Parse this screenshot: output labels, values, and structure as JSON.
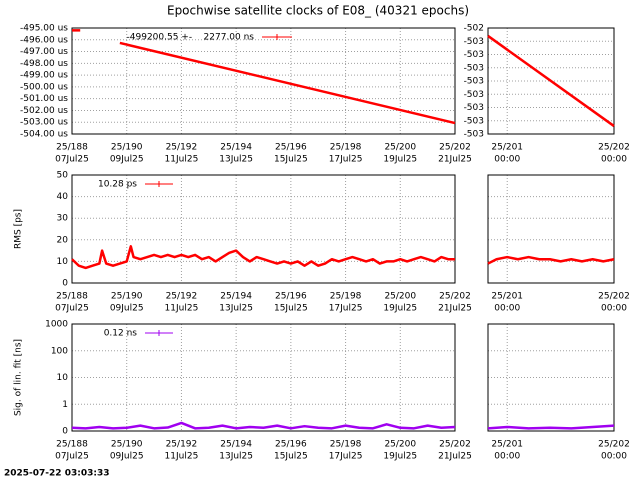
{
  "title": "Epochwise satellite clocks of E08_ (40321 epochs)",
  "timestamp": "2025-07-22 03:03:33",
  "chart_data": [
    {
      "type": "line",
      "grid": true,
      "xlim": [
        188,
        202
      ],
      "ylim": [
        -504,
        -495
      ],
      "xticks": [
        {
          "value": 188,
          "label": [
            "25/188",
            "07Jul25"
          ]
        },
        {
          "value": 190,
          "label": [
            "25/190",
            "09Jul25"
          ]
        },
        {
          "value": 192,
          "label": [
            "25/192",
            "11Jul25"
          ]
        },
        {
          "value": 194,
          "label": [
            "25/194",
            "13Jul25"
          ]
        },
        {
          "value": 196,
          "label": [
            "25/196",
            "15Jul25"
          ]
        },
        {
          "value": 198,
          "label": [
            "25/198",
            "17Jul25"
          ]
        },
        {
          "value": 200,
          "label": [
            "25/200",
            "19Jul25"
          ]
        },
        {
          "value": 202,
          "label": [
            "25/202",
            "21Jul25"
          ]
        }
      ],
      "yticks": [
        {
          "value": -495,
          "label": "-495.00 us"
        },
        {
          "value": -496,
          "label": "-496.00 us"
        },
        {
          "value": -497,
          "label": "-497.00 us"
        },
        {
          "value": -498,
          "label": "-498.00 us"
        },
        {
          "value": -499,
          "label": "-499.00 us"
        },
        {
          "value": -500,
          "label": "-500.00 us"
        },
        {
          "value": -501,
          "label": "-501.00 us"
        },
        {
          "value": -502,
          "label": "-502.00 us"
        },
        {
          "value": -503,
          "label": "-503.00 us"
        },
        {
          "value": -504,
          "label": "-504.00 us"
        }
      ],
      "series": [
        {
          "name": "-499200.55 +-    2277.00 ns",
          "color": "#ff0000",
          "x": [
            188.0,
            188.3,
            188.4,
            189.75,
            202.0
          ],
          "values": [
            -495.2,
            -495.2,
            null,
            -496.27,
            -503.07
          ]
        }
      ]
    },
    {
      "type": "line",
      "grid": true,
      "xlim": [
        200.82,
        202
      ],
      "ylim": [
        -503.2,
        -502.4
      ],
      "xticks": [
        {
          "value": 201,
          "label": [
            "25/201",
            "00:00"
          ]
        },
        {
          "value": 202,
          "label": [
            "25/202",
            "00:00"
          ]
        }
      ],
      "yticks": [
        {
          "value": -502.4,
          "label": "-502"
        },
        {
          "value": -502.5,
          "label": "-503"
        },
        {
          "value": -502.6,
          "label": "-503"
        },
        {
          "value": -502.7,
          "label": "-503"
        },
        {
          "value": -502.8,
          "label": "-503"
        },
        {
          "value": -502.9,
          "label": "-503"
        },
        {
          "value": -503.0,
          "label": "-503"
        },
        {
          "value": -503.1,
          "label": "-503"
        },
        {
          "value": -503.2,
          "label": "-503"
        }
      ],
      "series": [
        {
          "color": "#ff0000",
          "x": [
            200.82,
            202.0
          ],
          "values": [
            -502.46,
            -503.14
          ]
        }
      ]
    },
    {
      "type": "line",
      "grid": true,
      "ylabel": "RMS [ps]",
      "xlim": [
        188,
        202
      ],
      "ylim": [
        0,
        50
      ],
      "xticks": [
        {
          "value": 188,
          "label": [
            "25/188",
            "07Jul25"
          ]
        },
        {
          "value": 190,
          "label": [
            "25/190",
            "09Jul25"
          ]
        },
        {
          "value": 192,
          "label": [
            "25/192",
            "11Jul25"
          ]
        },
        {
          "value": 194,
          "label": [
            "25/194",
            "13Jul25"
          ]
        },
        {
          "value": 196,
          "label": [
            "25/196",
            "15Jul25"
          ]
        },
        {
          "value": 198,
          "label": [
            "25/198",
            "17Jul25"
          ]
        },
        {
          "value": 200,
          "label": [
            "25/200",
            "19Jul25"
          ]
        },
        {
          "value": 202,
          "label": [
            "25/202",
            "21Jul25"
          ]
        }
      ],
      "yticks": [
        0,
        10,
        20,
        30,
        40,
        50
      ],
      "series": [
        {
          "name": "10.28 ps",
          "color": "#ff0000",
          "x": [
            188.0,
            188.25,
            188.5,
            188.75,
            189.0,
            189.1,
            189.25,
            189.5,
            189.75,
            190.0,
            190.15,
            190.25,
            190.5,
            190.75,
            191.0,
            191.25,
            191.5,
            191.75,
            192.0,
            192.25,
            192.5,
            192.75,
            193.0,
            193.25,
            193.5,
            193.75,
            194.0,
            194.25,
            194.5,
            194.75,
            195.0,
            195.25,
            195.5,
            195.75,
            196.0,
            196.25,
            196.5,
            196.75,
            197.0,
            197.25,
            197.5,
            197.75,
            198.0,
            198.25,
            198.5,
            198.75,
            199.0,
            199.25,
            199.5,
            199.75,
            200.0,
            200.25,
            200.5,
            200.75,
            201.0,
            201.25,
            201.5,
            201.75,
            202.0
          ],
          "values": [
            11,
            8,
            7,
            8,
            9,
            15,
            9,
            8,
            9,
            10,
            17,
            12,
            11,
            12,
            13,
            12,
            13,
            12,
            13,
            12,
            13,
            11,
            12,
            10,
            12,
            14,
            15,
            12,
            10,
            12,
            11,
            10,
            9,
            10,
            9,
            10,
            8,
            10,
            8,
            9,
            11,
            10,
            11,
            12,
            11,
            10,
            11,
            9,
            10,
            10,
            11,
            10,
            11,
            12,
            11,
            10,
            12,
            11,
            11
          ]
        }
      ]
    },
    {
      "type": "line",
      "grid": true,
      "yticklabels": false,
      "xlim": [
        200.82,
        202
      ],
      "ylim": [
        0,
        50
      ],
      "xticks": [
        {
          "value": 201,
          "label": [
            "25/201",
            "00:00"
          ]
        },
        {
          "value": 202,
          "label": [
            "25/202",
            "00:00"
          ]
        }
      ],
      "yticks": [
        0,
        10,
        20,
        30,
        40,
        50
      ],
      "series": [
        {
          "color": "#ff0000",
          "x": [
            200.82,
            200.9,
            201.0,
            201.1,
            201.2,
            201.3,
            201.4,
            201.5,
            201.6,
            201.7,
            201.8,
            201.9,
            202.0
          ],
          "values": [
            9,
            11,
            12,
            11,
            12,
            11,
            11,
            10,
            11,
            10,
            11,
            10,
            11
          ]
        }
      ]
    },
    {
      "type": "line",
      "grid": true,
      "yscale": "symlog",
      "ylabel": "Sig. of lin. fit [ns]",
      "xlim": [
        188,
        202
      ],
      "ylim": [
        0,
        1000
      ],
      "xticks": [
        {
          "value": 188,
          "label": [
            "25/188",
            "07Jul25"
          ]
        },
        {
          "value": 190,
          "label": [
            "25/190",
            "09Jul25"
          ]
        },
        {
          "value": 192,
          "label": [
            "25/192",
            "11Jul25"
          ]
        },
        {
          "value": 194,
          "label": [
            "25/194",
            "13Jul25"
          ]
        },
        {
          "value": 196,
          "label": [
            "25/196",
            "15Jul25"
          ]
        },
        {
          "value": 198,
          "label": [
            "25/198",
            "17Jul25"
          ]
        },
        {
          "value": 200,
          "label": [
            "25/200",
            "19Jul25"
          ]
        },
        {
          "value": 202,
          "label": [
            "25/202",
            "21Jul25"
          ]
        }
      ],
      "yticks": [
        0,
        1,
        10,
        100,
        1000
      ],
      "series": [
        {
          "name": "0.12 ns",
          "color": "#a000f0",
          "x": [
            188.0,
            188.5,
            189.0,
            189.5,
            190.0,
            190.5,
            191.0,
            191.5,
            192.0,
            192.5,
            193.0,
            193.5,
            194.0,
            194.5,
            195.0,
            195.5,
            196.0,
            196.5,
            197.0,
            197.5,
            198.0,
            198.5,
            199.0,
            199.5,
            200.0,
            200.5,
            201.0,
            201.5,
            202.0
          ],
          "values": [
            0.12,
            0.1,
            0.15,
            0.1,
            0.12,
            0.2,
            0.1,
            0.13,
            0.3,
            0.1,
            0.12,
            0.2,
            0.1,
            0.15,
            0.12,
            0.2,
            0.1,
            0.18,
            0.12,
            0.1,
            0.2,
            0.12,
            0.1,
            0.25,
            0.12,
            0.1,
            0.2,
            0.12,
            0.15
          ]
        }
      ]
    },
    {
      "type": "line",
      "grid": true,
      "yscale": "symlog",
      "yticklabels": false,
      "xlim": [
        200.82,
        202
      ],
      "ylim": [
        0,
        1000
      ],
      "xticks": [
        {
          "value": 201,
          "label": [
            "25/201",
            "00:00"
          ]
        },
        {
          "value": 202,
          "label": [
            "25/202",
            "00:00"
          ]
        }
      ],
      "yticks": [
        0,
        1,
        10,
        100,
        1000
      ],
      "series": [
        {
          "color": "#a000f0",
          "x": [
            200.82,
            201.0,
            201.2,
            201.4,
            201.6,
            201.8,
            202.0
          ],
          "values": [
            0.1,
            0.15,
            0.1,
            0.12,
            0.1,
            0.15,
            0.2
          ]
        }
      ]
    }
  ]
}
